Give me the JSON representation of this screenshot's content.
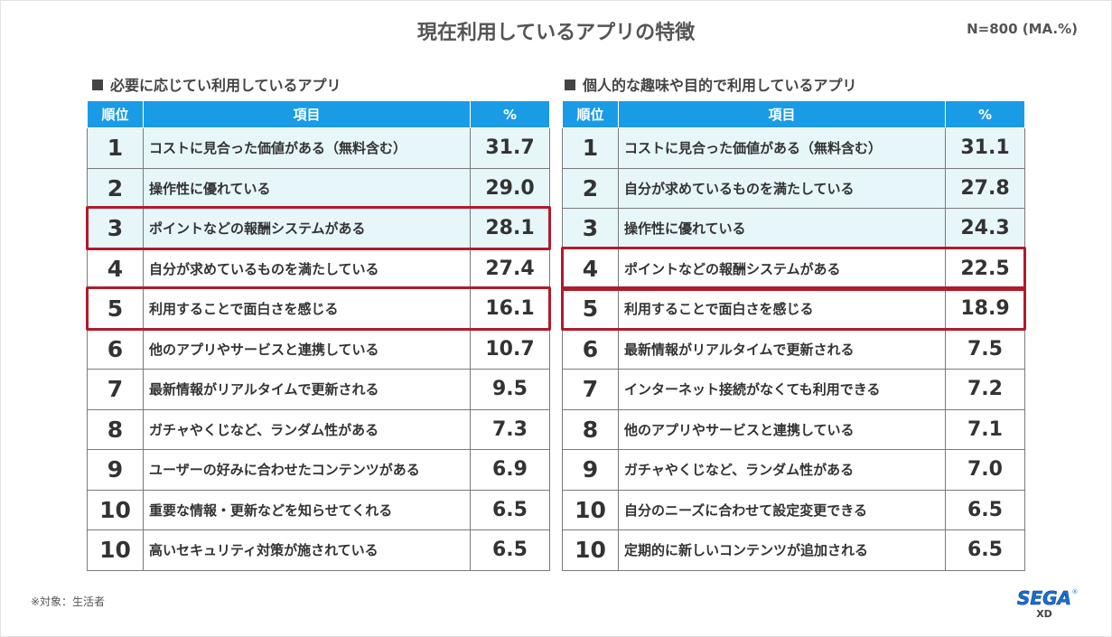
{
  "title": "現在利用しているアプリの特徴",
  "n_label": "N=800 (MA.%)",
  "footnote": "※対象：生活者",
  "logo": {
    "brand": "SEGA",
    "sub": "XD",
    "mark": "®"
  },
  "colors": {
    "header": "#1a9be6",
    "highlight_row": "#e6f6f9",
    "redbox": "#b01b2c"
  },
  "columns": {
    "rank": "順位",
    "item": "項目",
    "percent": "%"
  },
  "chart_data": [
    {
      "type": "table",
      "title": "必要に応じてい利用しているアプリ",
      "columns": [
        "順位",
        "項目",
        "%"
      ],
      "rows": [
        {
          "rank": "1",
          "item": "コストに見合った価値がある（無料含む）",
          "value": "31.7",
          "highlight": true,
          "boxed": false
        },
        {
          "rank": "2",
          "item": "操作性に優れている",
          "value": "29.0",
          "highlight": true,
          "boxed": false
        },
        {
          "rank": "3",
          "item": "ポイントなどの報酬システムがある",
          "value": "28.1",
          "highlight": true,
          "boxed": true
        },
        {
          "rank": "4",
          "item": "自分が求めているものを満たしている",
          "value": "27.4",
          "highlight": false,
          "boxed": false
        },
        {
          "rank": "5",
          "item": "利用することで面白さを感じる",
          "value": "16.1",
          "highlight": false,
          "boxed": true
        },
        {
          "rank": "6",
          "item": "他のアプリやサービスと連携している",
          "value": "10.7",
          "highlight": false,
          "boxed": false
        },
        {
          "rank": "7",
          "item": "最新情報がリアルタイムで更新される",
          "value": "9.5",
          "highlight": false,
          "boxed": false
        },
        {
          "rank": "8",
          "item": "ガチャやくじなど、ランダム性がある",
          "value": "7.3",
          "highlight": false,
          "boxed": false
        },
        {
          "rank": "9",
          "item": "ユーザーの好みに合わせたコンテンツがある",
          "value": "6.9",
          "highlight": false,
          "boxed": false
        },
        {
          "rank": "10",
          "item": "重要な情報・更新などを知らせてくれる",
          "value": "6.5",
          "highlight": false,
          "boxed": false
        },
        {
          "rank": "10",
          "item": "高いセキュリティ対策が施されている",
          "value": "6.5",
          "highlight": false,
          "boxed": false
        }
      ]
    },
    {
      "type": "table",
      "title": "個人的な趣味や目的で利用しているアプリ",
      "columns": [
        "順位",
        "項目",
        "%"
      ],
      "rows": [
        {
          "rank": "1",
          "item": "コストに見合った価値がある（無料含む）",
          "value": "31.1",
          "highlight": true,
          "boxed": false
        },
        {
          "rank": "2",
          "item": "自分が求めているものを満たしている",
          "value": "27.8",
          "highlight": true,
          "boxed": false
        },
        {
          "rank": "3",
          "item": "操作性に優れている",
          "value": "24.3",
          "highlight": true,
          "boxed": false
        },
        {
          "rank": "4",
          "item": "ポイントなどの報酬システムがある",
          "value": "22.5",
          "highlight": false,
          "boxed": true
        },
        {
          "rank": "5",
          "item": "利用することで面白さを感じる",
          "value": "18.9",
          "highlight": false,
          "boxed": true
        },
        {
          "rank": "6",
          "item": "最新情報がリアルタイムで更新される",
          "value": "7.5",
          "highlight": false,
          "boxed": false
        },
        {
          "rank": "7",
          "item": "インターネット接続がなくても利用できる",
          "value": "7.2",
          "highlight": false,
          "boxed": false
        },
        {
          "rank": "8",
          "item": "他のアプリやサービスと連携している",
          "value": "7.1",
          "highlight": false,
          "boxed": false
        },
        {
          "rank": "9",
          "item": "ガチャやくじなど、ランダム性がある",
          "value": "7.0",
          "highlight": false,
          "boxed": false
        },
        {
          "rank": "10",
          "item": "自分のニーズに合わせて設定変更できる",
          "value": "6.5",
          "highlight": false,
          "boxed": false
        },
        {
          "rank": "10",
          "item": "定期的に新しいコンテンツが追加される",
          "value": "6.5",
          "highlight": false,
          "boxed": false
        }
      ]
    }
  ]
}
